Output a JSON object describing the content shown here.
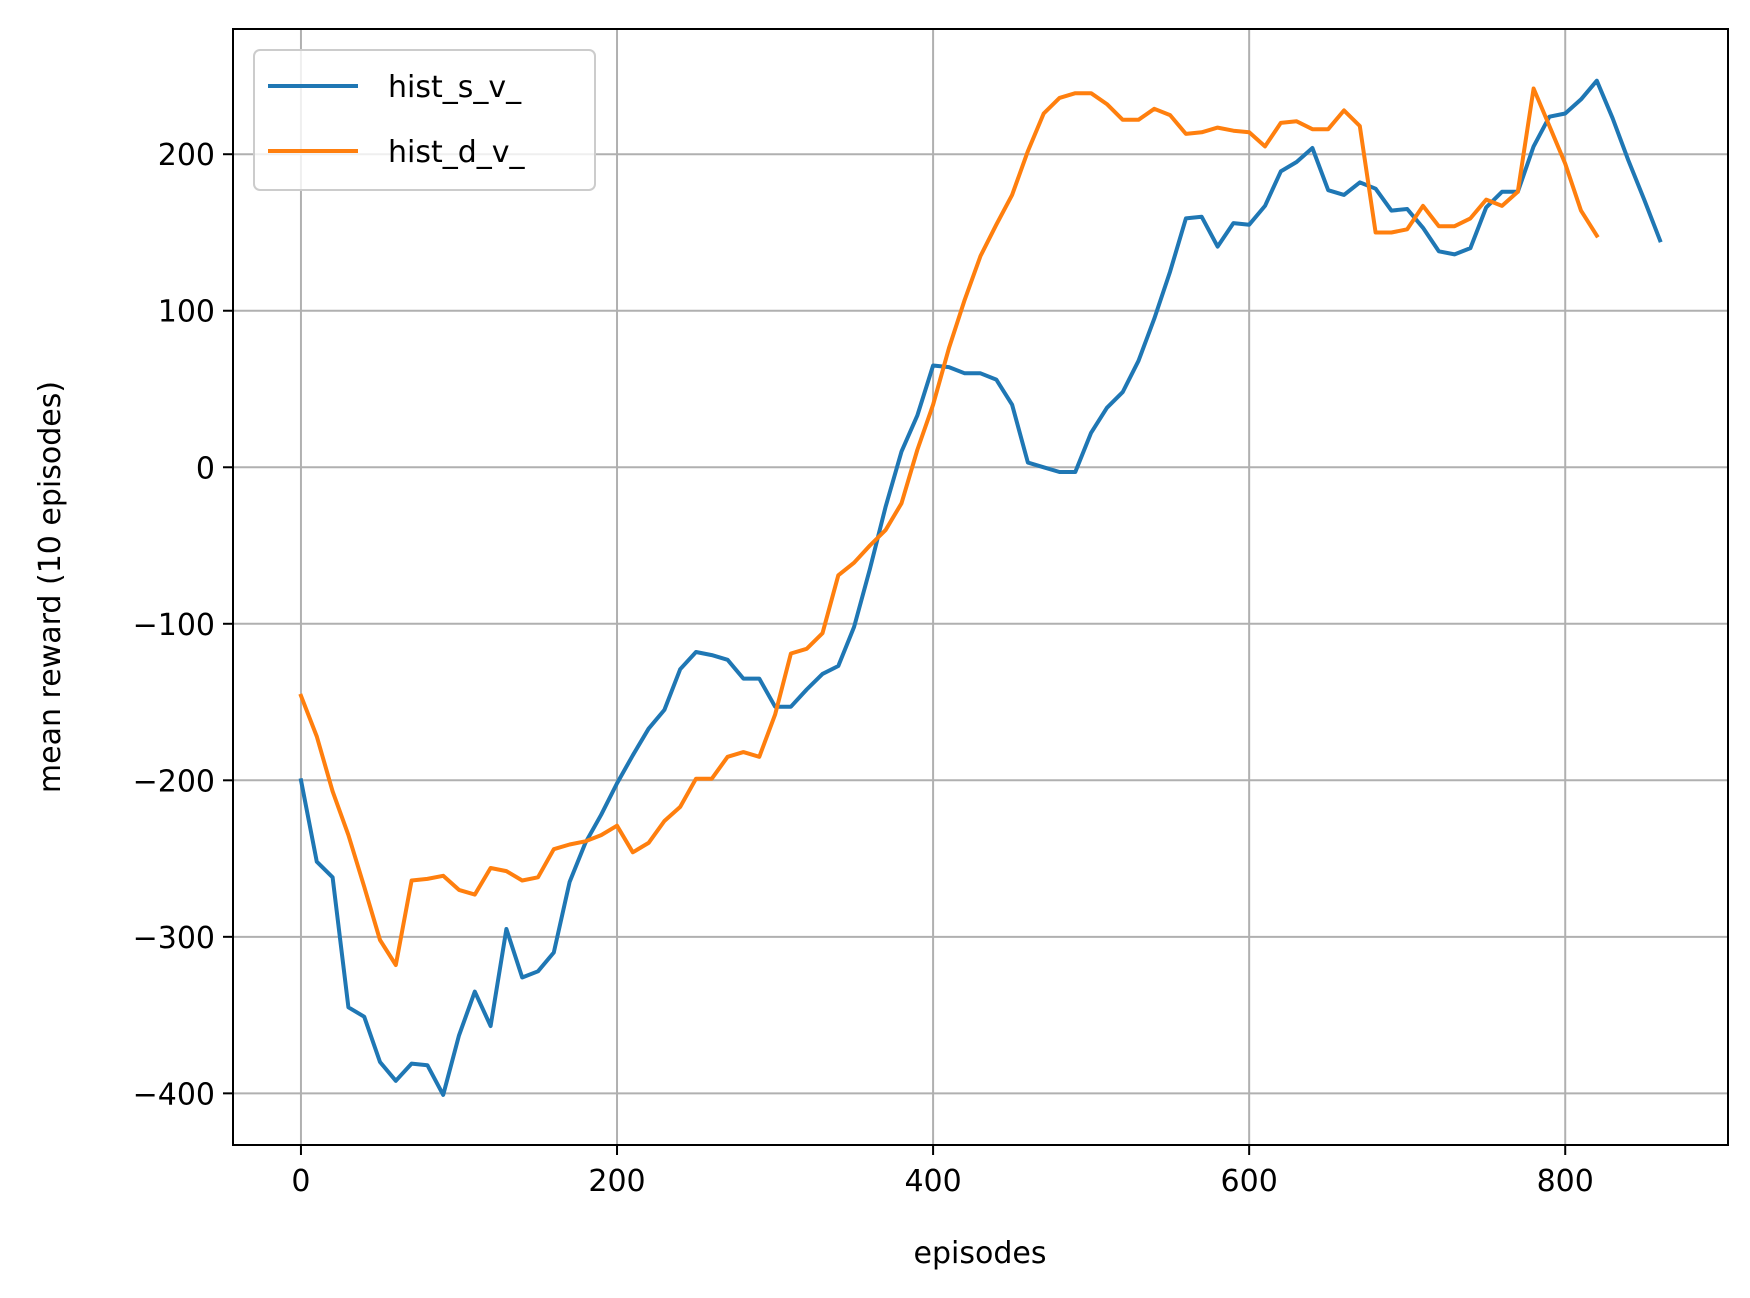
{
  "chart_data": {
    "type": "line",
    "title": "",
    "xlabel": "episodes",
    "ylabel": "mean reward (10 episodes)",
    "xlim": [
      -43,
      903
    ],
    "ylim": [
      -433,
      280
    ],
    "xticks": [
      0,
      200,
      400,
      600,
      800
    ],
    "yticks": [
      -400,
      -300,
      -200,
      -100,
      0,
      100,
      200
    ],
    "xtick_labels": [
      "0",
      "200",
      "400",
      "600",
      "800"
    ],
    "ytick_labels": [
      "−400",
      "−300",
      "−200",
      "−100",
      "0",
      "100",
      "200"
    ],
    "grid": true,
    "legend_position": "upper left",
    "series": [
      {
        "name": "hist_s_v_",
        "color": "#1f77b4",
        "x": [
          0,
          10,
          20,
          30,
          40,
          50,
          60,
          70,
          80,
          90,
          100,
          110,
          120,
          130,
          140,
          150,
          160,
          170,
          180,
          190,
          200,
          210,
          220,
          230,
          240,
          250,
          260,
          270,
          280,
          290,
          300,
          310,
          320,
          330,
          340,
          350,
          360,
          370,
          380,
          390,
          400,
          410,
          420,
          430,
          440,
          450,
          460,
          470,
          480,
          490,
          500,
          510,
          520,
          530,
          540,
          550,
          560,
          570,
          580,
          590,
          600,
          610,
          620,
          630,
          640,
          650,
          660,
          670,
          680,
          690,
          700,
          710,
          720,
          730,
          740,
          750,
          760,
          770,
          780,
          790,
          800,
          810,
          820,
          830,
          840,
          850,
          860
        ],
        "y": [
          -200,
          -252,
          -262,
          -345,
          -351,
          -380,
          -392,
          -381,
          -382,
          -401,
          -363,
          -335,
          -357,
          -295,
          -326,
          -322,
          -310,
          -265,
          -240,
          -222,
          -202,
          -184,
          -167,
          -155,
          -129,
          -118,
          -120,
          -123,
          -135,
          -135,
          -153,
          -153,
          -142,
          -132,
          -127,
          -102,
          -65,
          -25,
          10,
          33,
          65,
          64,
          60,
          60,
          56,
          40,
          3,
          0,
          -3,
          -3,
          22,
          38,
          48,
          68,
          95,
          125,
          159,
          160,
          141,
          156,
          155,
          167,
          189,
          195,
          204,
          177,
          174,
          182,
          178,
          164,
          165,
          153,
          138,
          136,
          140,
          166,
          176,
          176,
          205,
          224,
          226,
          235,
          247,
          223,
          196,
          171,
          145
        ]
      },
      {
        "name": "hist_d_v_",
        "color": "#ff7f0e",
        "x": [
          0,
          10,
          20,
          30,
          40,
          50,
          60,
          70,
          80,
          90,
          100,
          110,
          120,
          130,
          140,
          150,
          160,
          170,
          180,
          190,
          200,
          210,
          220,
          230,
          240,
          250,
          260,
          270,
          280,
          290,
          300,
          310,
          320,
          330,
          340,
          350,
          360,
          370,
          380,
          390,
          400,
          410,
          420,
          430,
          440,
          450,
          460,
          470,
          480,
          490,
          500,
          510,
          520,
          530,
          540,
          550,
          560,
          570,
          580,
          590,
          600,
          610,
          620,
          630,
          640,
          650,
          660,
          670,
          680,
          690,
          700,
          710,
          720,
          730,
          740,
          750,
          760,
          770,
          780,
          790,
          800,
          810,
          820
        ],
        "y": [
          -146,
          -172,
          -207,
          -235,
          -268,
          -302,
          -318,
          -264,
          -263,
          -261,
          -270,
          -273,
          -256,
          -258,
          -264,
          -262,
          -244,
          -241,
          -239,
          -235,
          -229,
          -246,
          -240,
          -226,
          -217,
          -199,
          -199,
          -185,
          -182,
          -185,
          -158,
          -119,
          -116,
          -106,
          -69,
          -61,
          -50,
          -40,
          -23,
          11,
          40,
          76,
          107,
          135,
          155,
          174,
          202,
          226,
          236,
          239,
          239,
          232,
          222,
          222,
          229,
          225,
          213,
          214,
          217,
          215,
          214,
          205,
          220,
          221,
          216,
          216,
          228,
          218,
          150,
          150,
          152,
          167,
          154,
          154,
          159,
          171,
          167,
          176,
          242,
          218,
          194,
          164,
          148
        ]
      }
    ]
  }
}
